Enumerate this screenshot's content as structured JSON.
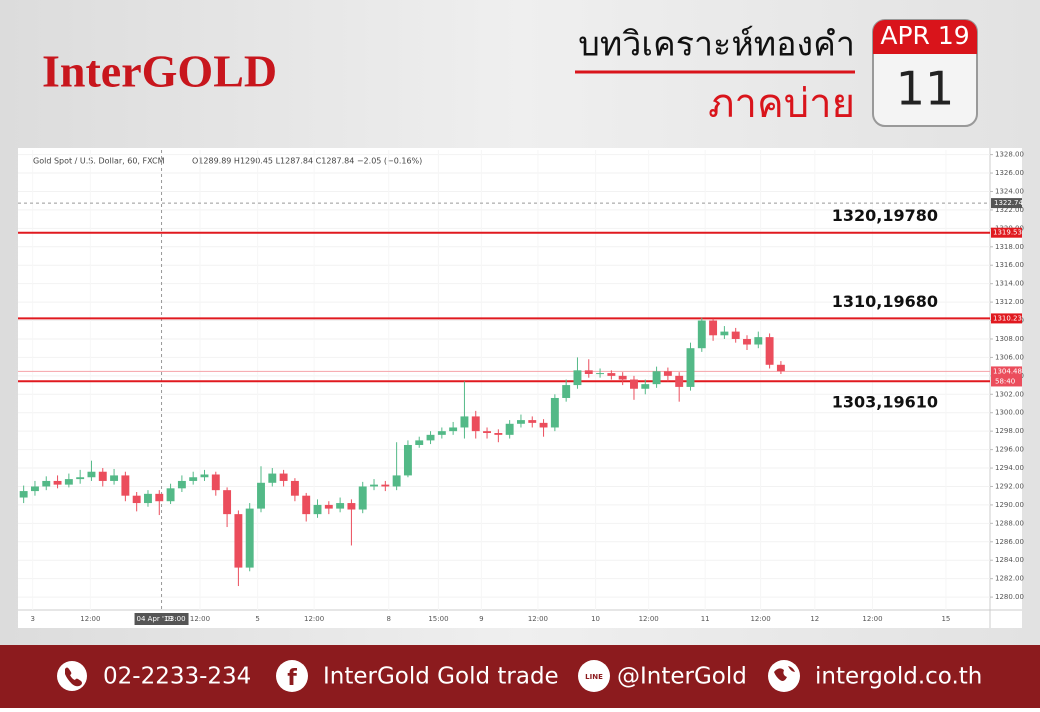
{
  "header": {
    "logo": "InterGOLD",
    "title": "บทวิเคราะห์ทองคำ",
    "subtitle": "ภาคบ่าย",
    "calendar_month": "APR 19",
    "calendar_day": "11"
  },
  "chart_data": {
    "type": "candlestick",
    "symbol": "Gold Spot / U.S. Dollar, 60, FXCM",
    "ohlc_text": "O1289.89 H1290.45 L1287.84 C1287.84 −2.05 (−0.16%)",
    "open": [
      1290.8,
      1291.5,
      1292.0,
      1292.6,
      1292.2,
      1292.8,
      1293.0,
      1293.6,
      1292.6,
      1293.2,
      1291.0,
      1290.2,
      1291.2,
      1290.4,
      1291.8,
      1292.6,
      1293.0,
      1293.3,
      1291.6,
      1289.0,
      1283.2,
      1289.6,
      1292.4,
      1293.4,
      1292.6,
      1291.0,
      1289.0,
      1290.0,
      1289.6,
      1290.2,
      1289.5,
      1292.0,
      1292.2,
      1292.0,
      1293.2,
      1296.5,
      1297.0,
      1297.6,
      1298.0,
      1298.4,
      1299.6,
      1298.0,
      1297.8,
      1297.6,
      1298.8,
      1299.2,
      1298.9,
      1298.4,
      1301.6,
      1303.0,
      1304.6,
      1304.2,
      1304.3,
      1304.0,
      1303.6,
      1302.6,
      1303.1,
      1304.5,
      1304.0,
      1302.8,
      1307.0,
      1310.0,
      1308.4,
      1308.8,
      1308.0,
      1307.4,
      1308.2,
      1305.2
    ],
    "high": [
      1292.1,
      1292.6,
      1293.1,
      1293.2,
      1293.4,
      1293.8,
      1294.8,
      1294.0,
      1293.9,
      1293.6,
      1291.4,
      1291.6,
      1291.6,
      1292.3,
      1293.2,
      1293.6,
      1293.8,
      1293.6,
      1291.9,
      1289.4,
      1290.2,
      1294.2,
      1294.0,
      1293.8,
      1292.9,
      1291.3,
      1290.6,
      1290.4,
      1290.8,
      1290.6,
      1292.5,
      1292.8,
      1292.6,
      1296.8,
      1297.0,
      1297.4,
      1298.0,
      1298.4,
      1299.0,
      1303.4,
      1300.2,
      1298.4,
      1298.2,
      1299.2,
      1299.8,
      1299.6,
      1299.3,
      1302.0,
      1303.6,
      1306.0,
      1305.8,
      1304.8,
      1304.6,
      1304.4,
      1304.0,
      1303.6,
      1305.0,
      1304.9,
      1304.4,
      1307.6,
      1310.3,
      1310.2,
      1309.4,
      1309.2,
      1308.4,
      1308.8,
      1308.6,
      1305.6
    ],
    "low": [
      1290.2,
      1291.0,
      1291.6,
      1291.8,
      1291.9,
      1292.3,
      1292.6,
      1292.0,
      1292.2,
      1290.4,
      1289.3,
      1289.8,
      1288.9,
      1290.1,
      1291.4,
      1292.2,
      1292.6,
      1291.0,
      1287.6,
      1281.2,
      1282.8,
      1289.2,
      1292.0,
      1292.0,
      1290.4,
      1288.2,
      1288.6,
      1289.0,
      1289.2,
      1285.6,
      1289.1,
      1291.6,
      1291.5,
      1291.6,
      1293.0,
      1296.2,
      1296.6,
      1297.2,
      1297.6,
      1297.2,
      1297.2,
      1297.2,
      1296.8,
      1297.2,
      1298.4,
      1298.4,
      1297.4,
      1298.0,
      1301.2,
      1302.6,
      1303.8,
      1303.8,
      1303.6,
      1303.0,
      1301.4,
      1302.0,
      1302.7,
      1303.4,
      1301.2,
      1302.4,
      1306.6,
      1307.8,
      1308.0,
      1307.6,
      1306.8,
      1307.0,
      1304.8,
      1304.2
    ],
    "close": [
      1291.5,
      1292.0,
      1292.6,
      1292.2,
      1292.8,
      1293.0,
      1293.6,
      1292.6,
      1293.2,
      1291.0,
      1290.2,
      1291.2,
      1290.4,
      1291.8,
      1292.6,
      1293.0,
      1293.3,
      1291.6,
      1289.0,
      1283.2,
      1289.6,
      1292.4,
      1293.4,
      1292.6,
      1291.0,
      1289.0,
      1290.0,
      1289.6,
      1290.2,
      1289.5,
      1292.0,
      1292.2,
      1292.0,
      1293.2,
      1296.5,
      1297.0,
      1297.6,
      1298.0,
      1298.4,
      1299.6,
      1298.0,
      1297.8,
      1297.6,
      1298.8,
      1299.2,
      1298.9,
      1298.4,
      1301.6,
      1303.0,
      1304.6,
      1304.2,
      1304.3,
      1304.0,
      1303.6,
      1302.6,
      1303.1,
      1304.5,
      1304.0,
      1302.8,
      1307.0,
      1310.0,
      1308.4,
      1308.8,
      1308.0,
      1307.4,
      1308.2,
      1305.2,
      1304.5
    ],
    "up_color": "#53b987",
    "down_color": "#eb4d5c",
    "xlim": [
      -0.5,
      85.5
    ],
    "xticks": [
      {
        "value": 0.8,
        "label": "3"
      },
      {
        "value": 5.9,
        "label": "12:00"
      },
      {
        "value": 15.6,
        "label": "12:00"
      },
      {
        "value": 20.7,
        "label": "5"
      },
      {
        "value": 25.7,
        "label": "12:00"
      },
      {
        "value": 32.3,
        "label": "8"
      },
      {
        "value": 36.7,
        "label": "15:00"
      },
      {
        "value": 40.5,
        "label": "9"
      },
      {
        "value": 45.5,
        "label": "12:00"
      },
      {
        "value": 50.6,
        "label": "10"
      },
      {
        "value": 55.3,
        "label": "12:00"
      },
      {
        "value": 60.3,
        "label": "11"
      },
      {
        "value": 65.2,
        "label": "12:00"
      },
      {
        "value": 70.0,
        "label": "12"
      },
      {
        "value": 75.1,
        "label": "12:00"
      },
      {
        "value": 81.6,
        "label": "15"
      }
    ],
    "ylim": [
      1278.6,
      1328.5
    ],
    "yticks": [
      {
        "value": 1280,
        "label": "1280.00"
      },
      {
        "value": 1282,
        "label": "1282.00"
      },
      {
        "value": 1284,
        "label": "1284.00"
      },
      {
        "value": 1286,
        "label": "1286.00"
      },
      {
        "value": 1288,
        "label": "1288.00"
      },
      {
        "value": 1290,
        "label": "1290.00"
      },
      {
        "value": 1292,
        "label": "1292.00"
      },
      {
        "value": 1294,
        "label": "1294.00"
      },
      {
        "value": 1296,
        "label": "1296.00"
      },
      {
        "value": 1298,
        "label": "1298.00"
      },
      {
        "value": 1300,
        "label": "1300.00"
      },
      {
        "value": 1302,
        "label": "1302.00"
      },
      {
        "value": 1304,
        "label": "1304.00"
      },
      {
        "value": 1306,
        "label": "1306.00"
      },
      {
        "value": 1308,
        "label": "1308.00"
      },
      {
        "value": 1310,
        "label": "1310.00"
      },
      {
        "value": 1312,
        "label": "1312.00"
      },
      {
        "value": 1314,
        "label": "1314.00"
      },
      {
        "value": 1316,
        "label": "1316.00"
      },
      {
        "value": 1318,
        "label": "1318.00"
      },
      {
        "value": 1320,
        "label": "1320.00"
      },
      {
        "value": 1322,
        "label": "1322.00"
      },
      {
        "value": 1324,
        "label": "1324.00"
      },
      {
        "value": 1326,
        "label": "1326.00"
      },
      {
        "value": 1328,
        "label": "1328.00"
      }
    ],
    "grid": true,
    "levels": [
      {
        "value": 1319.53,
        "label": "1320,19780",
        "color": "#e0191f"
      },
      {
        "value": 1310.23,
        "label": "1310,19680",
        "color": "#e0191f"
      },
      {
        "value": 1303.42,
        "label": "1303,19610",
        "color": "#e0191f"
      }
    ],
    "last_price": 1304.48,
    "countdown": "58:40",
    "crosshair": {
      "x": 12.2,
      "y": 1322.74,
      "date": "04 Apr '19",
      "time": "03:00"
    }
  },
  "footer": {
    "phone": "02-2233-234",
    "facebook": "InterGold Gold trade",
    "line": "@InterGold",
    "website": "intergold.co.th"
  }
}
